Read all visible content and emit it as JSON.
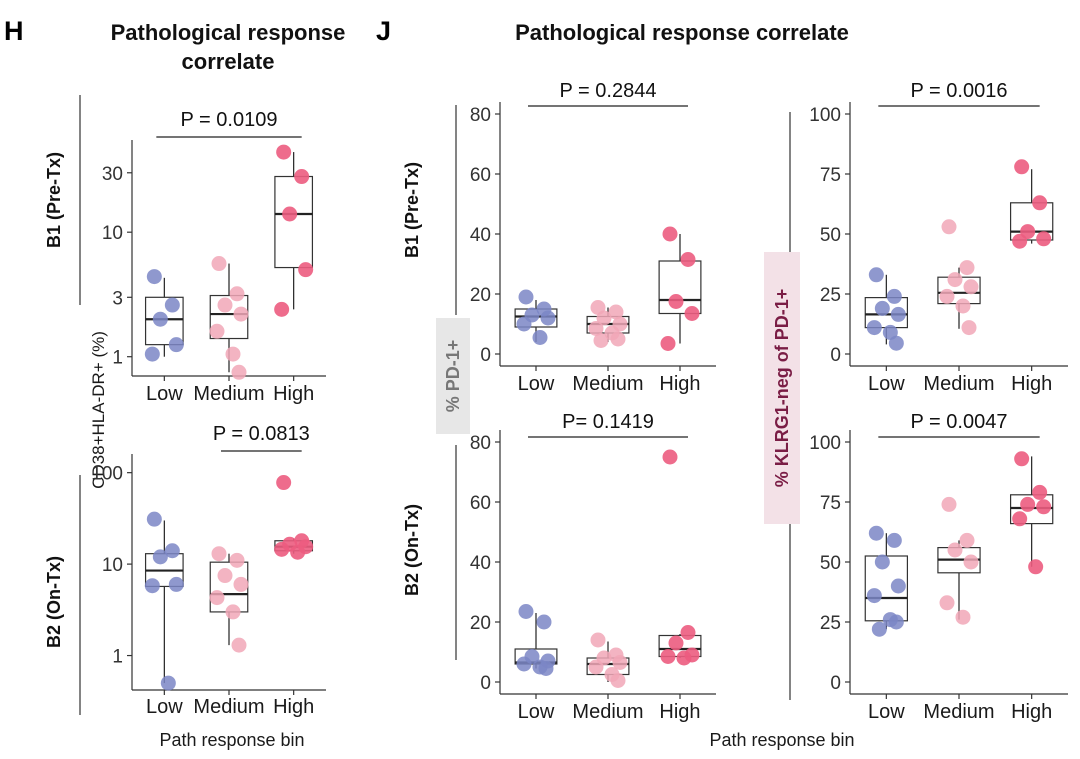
{
  "panel_h": {
    "letter": "H",
    "title_line1": "Pathological response",
    "title_line2": "correlate",
    "ylabel": "CD38+HLA-DR+ (%)",
    "xlabel": "Path response bin",
    "row1_label": "B1 (Pre-Tx)",
    "row2_label": "B2 (On-Tx)"
  },
  "panel_j": {
    "letter": "J",
    "title": "Pathological response correlate",
    "ylabel_left": "% PD-1+",
    "ylabel_right": "% KLRG1-neg of PD-1+",
    "xlabel": "Path response bin",
    "row1_label": "B1 (Pre-Tx)",
    "row2_label": "B2 (On-Tx)"
  },
  "colors": {
    "low": "#7b86c6",
    "medium": "#f1a7b7",
    "high": "#ec5c80",
    "ylabel_right": "#7a1d45",
    "ylabel_right_bg": "#f3e1e7",
    "ylabel_left_bg": "#e7e7e7"
  },
  "chart_data": [
    {
      "id": "h_top",
      "type": "box+scatter",
      "scale": "log",
      "categories": [
        "Low",
        "Medium",
        "High"
      ],
      "yticks": [
        1,
        3,
        10,
        30
      ],
      "ytick_labels": [
        "1",
        "3",
        "10",
        "30"
      ],
      "ylim": [
        0.7,
        55
      ],
      "pvalue": "P = 0.0109",
      "bracket": [
        0,
        2
      ],
      "boxes": [
        {
          "q1": 1.25,
          "median": 2.0,
          "q3": 3.0,
          "lo": 1.0,
          "hi": 4.3
        },
        {
          "q1": 1.4,
          "median": 2.2,
          "q3": 3.1,
          "lo": 0.75,
          "hi": 5.6
        },
        {
          "q1": 5.2,
          "median": 14.0,
          "q3": 28.0,
          "lo": 2.4,
          "hi": 44
        }
      ],
      "points": [
        [
          4.4,
          2.6,
          2.0,
          1.25,
          1.05
        ],
        [
          5.6,
          3.2,
          2.6,
          2.2,
          1.6,
          1.05,
          0.75
        ],
        [
          44,
          28,
          14,
          5.0,
          2.4
        ]
      ]
    },
    {
      "id": "h_bot",
      "type": "box+scatter",
      "scale": "log",
      "categories": [
        "Low",
        "Medium",
        "High"
      ],
      "yticks": [
        1,
        10,
        100
      ],
      "ytick_labels": [
        "1",
        "10",
        "100"
      ],
      "ylim": [
        0.42,
        160
      ],
      "pvalue": "P = 0.0813",
      "bracket": [
        1,
        2
      ],
      "boxes": [
        {
          "q1": 5.7,
          "median": 8.5,
          "q3": 13.0,
          "lo": 0.5,
          "hi": 30
        },
        {
          "q1": 3.0,
          "median": 4.7,
          "q3": 10.5,
          "lo": 1.3,
          "hi": 13
        },
        {
          "q1": 14.0,
          "median": 15.5,
          "q3": 18.0,
          "lo": 13.0,
          "hi": 19
        }
      ],
      "points": [
        [
          31,
          14,
          12,
          6.0,
          5.8,
          0.5
        ],
        [
          13,
          11,
          7.5,
          6.0,
          4.3,
          3.0,
          1.3
        ],
        [
          78,
          18,
          16.5,
          15.5,
          14.5,
          13.5
        ]
      ]
    },
    {
      "id": "j_tl",
      "type": "box+scatter",
      "scale": "linear",
      "categories": [
        "Low",
        "Medium",
        "High"
      ],
      "yticks": [
        0,
        20,
        40,
        60,
        80
      ],
      "ytick_labels": [
        "0",
        "20",
        "40",
        "60",
        "80"
      ],
      "ylim": [
        -4,
        84
      ],
      "pvalue": "P = 0.2844",
      "bracket": [
        0,
        2
      ],
      "boxes": [
        {
          "q1": 9,
          "median": 12.5,
          "q3": 15,
          "lo": 4,
          "hi": 18
        },
        {
          "q1": 7,
          "median": 10,
          "q3": 12.5,
          "lo": 4,
          "hi": 15.5
        },
        {
          "q1": 13.5,
          "median": 18,
          "q3": 31,
          "lo": 3.5,
          "hi": 40
        }
      ],
      "points": [
        [
          19,
          15,
          13,
          12,
          10,
          5.5
        ],
        [
          15.5,
          14,
          12,
          10,
          8.5,
          7,
          5,
          4.5
        ],
        [
          40,
          31.5,
          17.5,
          13.5,
          3.5
        ]
      ]
    },
    {
      "id": "j_tr",
      "type": "box+scatter",
      "scale": "linear",
      "categories": [
        "Low",
        "Medium",
        "High"
      ],
      "yticks": [
        0,
        25,
        50,
        75,
        100
      ],
      "ytick_labels": [
        "0",
        "25",
        "50",
        "75",
        "100"
      ],
      "ylim": [
        -5,
        105
      ],
      "pvalue": "P = 0.0016",
      "bracket": [
        0,
        2
      ],
      "boxes": [
        {
          "q1": 11,
          "median": 16.5,
          "q3": 23.5,
          "lo": 4,
          "hi": 33
        },
        {
          "q1": 21,
          "median": 25.5,
          "q3": 32,
          "lo": 10.5,
          "hi": 36
        },
        {
          "q1": 47.5,
          "median": 51,
          "q3": 63,
          "lo": 46,
          "hi": 77
        }
      ],
      "points": [
        [
          33,
          24,
          19,
          16.5,
          11,
          9,
          4.5
        ],
        [
          53,
          36,
          31,
          28,
          24,
          20,
          11
        ],
        [
          78,
          63,
          51,
          48,
          47
        ]
      ]
    },
    {
      "id": "j_bl",
      "type": "box+scatter",
      "scale": "linear",
      "categories": [
        "Low",
        "Medium",
        "High"
      ],
      "yticks": [
        0,
        20,
        40,
        60,
        80
      ],
      "ytick_labels": [
        "0",
        "20",
        "40",
        "60",
        "80"
      ],
      "ylim": [
        -4,
        84
      ],
      "pvalue": "P= 0.1419",
      "bracket": [
        0,
        2
      ],
      "boxes": [
        {
          "q1": 6,
          "median": 6.5,
          "q3": 11,
          "lo": 4.5,
          "hi": 23
        },
        {
          "q1": 2.5,
          "median": 6,
          "q3": 8,
          "lo": 0,
          "hi": 13.5
        },
        {
          "q1": 8.5,
          "median": 11,
          "q3": 15.5,
          "lo": 8,
          "hi": 16
        }
      ],
      "points": [
        [
          23.5,
          20,
          8.5,
          7,
          6,
          5,
          4.5
        ],
        [
          14,
          9,
          8,
          6.5,
          5,
          2.5,
          0.5
        ],
        [
          75,
          16.5,
          13,
          9,
          8.5,
          8
        ]
      ]
    },
    {
      "id": "j_br",
      "type": "box+scatter",
      "scale": "linear",
      "categories": [
        "Low",
        "Medium",
        "High"
      ],
      "yticks": [
        0,
        25,
        50,
        75,
        100
      ],
      "ytick_labels": [
        "0",
        "25",
        "50",
        "75",
        "100"
      ],
      "ylim": [
        -5,
        105
      ],
      "pvalue": "P = 0.0047",
      "bracket": [
        0,
        2
      ],
      "boxes": [
        {
          "q1": 25.5,
          "median": 35,
          "q3": 52.5,
          "lo": 22,
          "hi": 62
        },
        {
          "q1": 45.5,
          "median": 51,
          "q3": 56,
          "lo": 26,
          "hi": 59
        },
        {
          "q1": 66,
          "median": 72.5,
          "q3": 78,
          "lo": 48,
          "hi": 94
        }
      ],
      "points": [
        [
          62,
          59,
          50,
          40,
          36,
          26,
          25,
          22
        ],
        [
          74,
          59,
          55,
          50,
          33,
          27
        ],
        [
          93,
          79,
          74,
          73,
          68,
          48
        ]
      ]
    }
  ]
}
